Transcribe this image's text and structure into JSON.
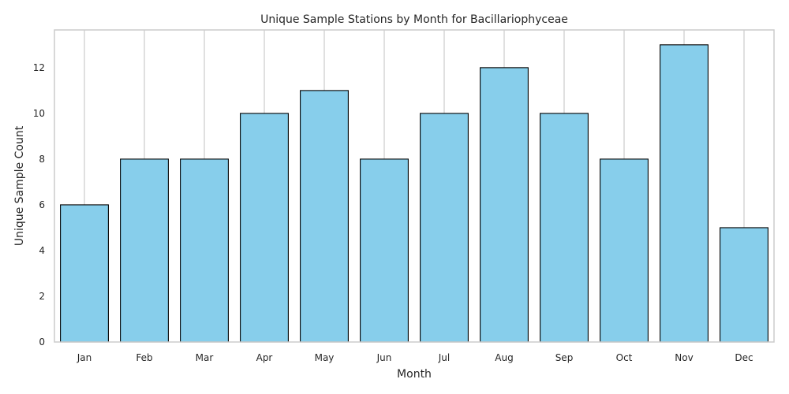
{
  "chart_data": {
    "type": "bar",
    "title": "Unique Sample Stations by Month for Bacillariophyceae",
    "xlabel": "Month",
    "ylabel": "Unique Sample Count",
    "categories": [
      "Jan",
      "Feb",
      "Mar",
      "Apr",
      "May",
      "Jun",
      "Jul",
      "Aug",
      "Sep",
      "Oct",
      "Nov",
      "Dec"
    ],
    "values": [
      6,
      8,
      8,
      10,
      11,
      8,
      10,
      12,
      10,
      8,
      13,
      5
    ],
    "ylim": [
      0,
      13.65
    ],
    "yticks": [
      0,
      2,
      4,
      6,
      8,
      10,
      12
    ],
    "grid": "vertical",
    "legend": "none",
    "colors": {
      "bar_fill": "#87ceeb",
      "bar_edge": "#000000",
      "grid": "#cccccc",
      "frame": "#cccccc",
      "text": "#262626"
    }
  }
}
